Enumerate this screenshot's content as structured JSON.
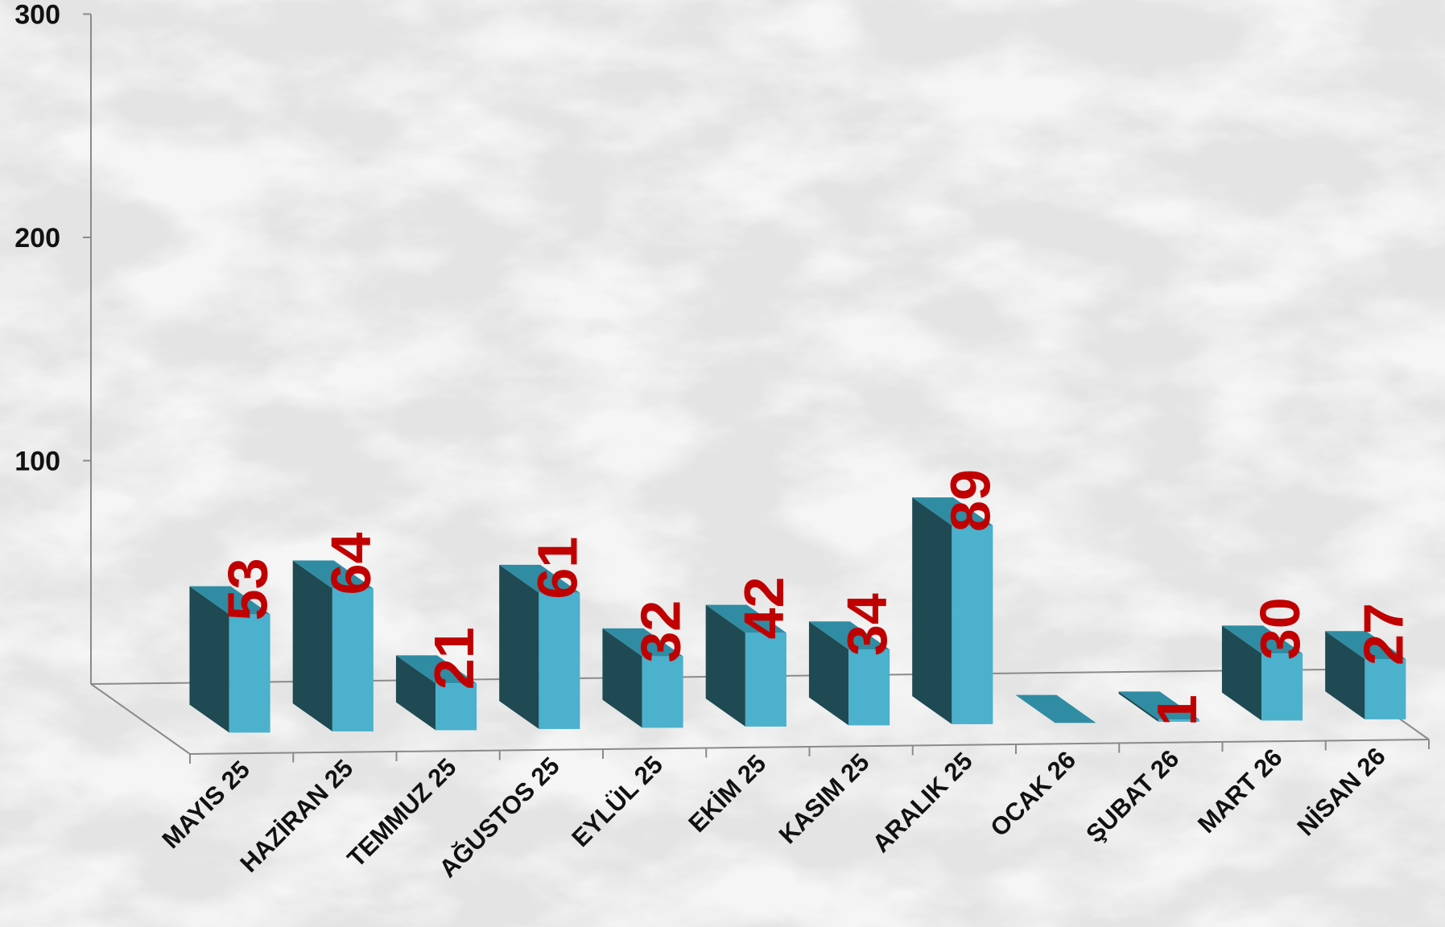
{
  "chart_data": {
    "type": "bar",
    "categories": [
      "MAYIS 25",
      "HAZİRAN 25",
      "TEMMUZ 25",
      "AĞUSTOS 25",
      "EYLÜL 25",
      "EKİM 25",
      "KASIM 25",
      "ARALIK 25",
      "OCAK 26",
      "ŞUBAT 26",
      "MART 26",
      "NİSAN 26"
    ],
    "values": [
      53,
      64,
      21,
      61,
      32,
      42,
      34,
      89,
      0,
      1,
      30,
      27
    ],
    "data_labels": [
      "53",
      "64",
      "21",
      "61",
      "32",
      "42",
      "34",
      "89",
      "",
      "1",
      "30",
      "27"
    ],
    "yticks": [
      "100",
      "200",
      "300"
    ],
    "ylim": [
      0,
      300
    ],
    "grid": false,
    "legend": "none",
    "style": "3d-column",
    "colors": {
      "bar_front": "#4bb1cc",
      "bar_side": "#1f4a53",
      "bar_top": "#2f8ca3",
      "data_label": "#c00000",
      "axis": "#8a8a8a",
      "text": "#111111"
    }
  }
}
